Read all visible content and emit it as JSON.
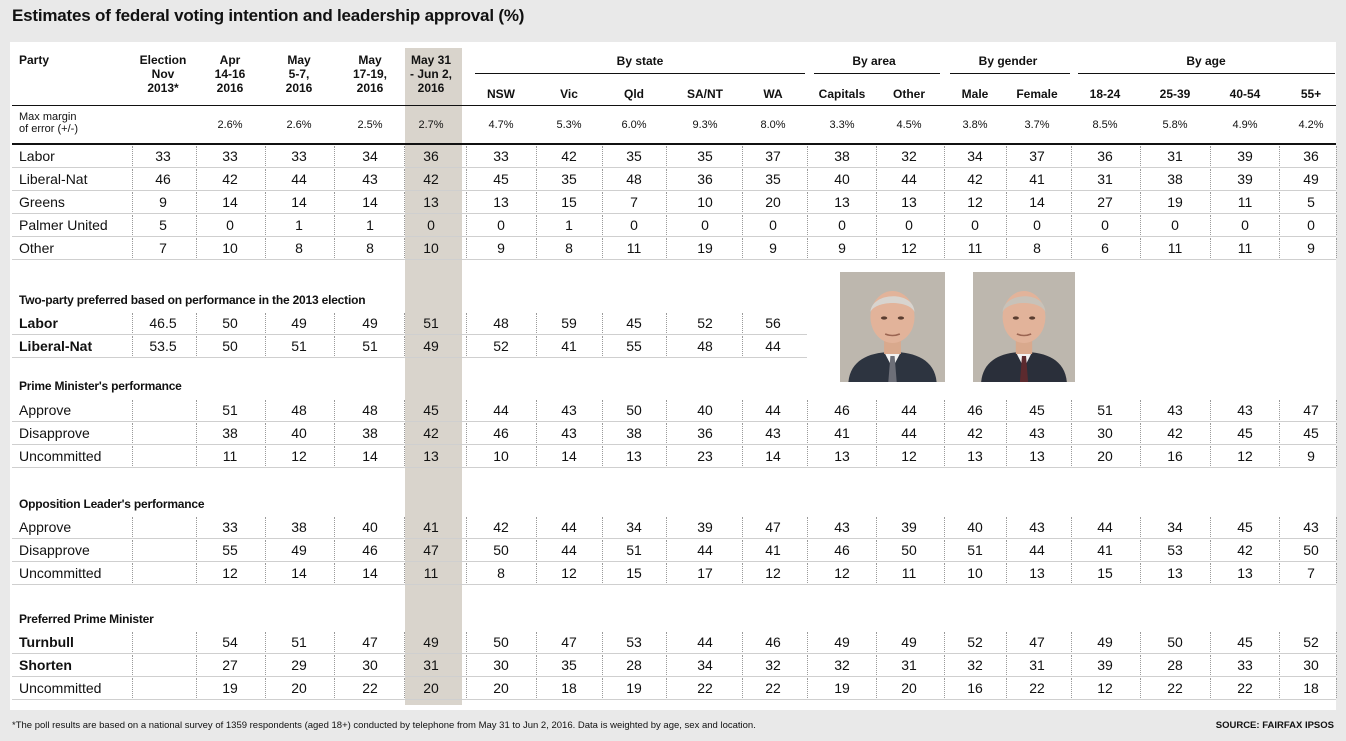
{
  "title": "Estimates of federal voting intention and leadership approval (%)",
  "columns": [
    "Election Nov 2013*",
    "Apr 14-16 2016",
    "May 5-7, 2016",
    "May 17-19, 2016",
    "May 31 - Jun 2, 2016",
    "NSW",
    "Vic",
    "Qld",
    "SA/NT",
    "WA",
    "Capitals",
    "Other",
    "Male",
    "Female",
    "18-24",
    "25-39",
    "40-54",
    "55+"
  ],
  "column_header_lines": [
    [
      "Election",
      "Nov",
      "2013*"
    ],
    [
      "Apr",
      "14-16",
      "2016"
    ],
    [
      "May",
      "5-7,",
      "2016"
    ],
    [
      "May",
      "17-19,",
      "2016"
    ],
    [
      "May 31",
      "- Jun 2,",
      "2016"
    ],
    [
      "NSW"
    ],
    [
      "Vic"
    ],
    [
      "Qld"
    ],
    [
      "SA/NT"
    ],
    [
      "WA"
    ],
    [
      "Capitals"
    ],
    [
      "Other"
    ],
    [
      "Male"
    ],
    [
      "Female"
    ],
    [
      "18-24"
    ],
    [
      "25-39"
    ],
    [
      "40-54"
    ],
    [
      "55+"
    ]
  ],
  "party_header": "Party",
  "groups": [
    "By state",
    "By area",
    "By gender",
    "By age"
  ],
  "margin_label_lines": [
    "Max margin",
    "of error (+/-)"
  ],
  "margins": [
    "",
    "2.6%",
    "2.6%",
    "2.5%",
    "2.7%",
    "4.7%",
    "5.3%",
    "6.0%",
    "9.3%",
    "8.0%",
    "3.3%",
    "4.5%",
    "3.8%",
    "3.7%",
    "8.5%",
    "5.8%",
    "4.9%",
    "4.2%"
  ],
  "primary": [
    {
      "label": "Labor",
      "bold": false,
      "values": [
        "33",
        "33",
        "33",
        "34",
        "36",
        "33",
        "42",
        "35",
        "35",
        "37",
        "38",
        "32",
        "34",
        "37",
        "36",
        "31",
        "39",
        "36"
      ]
    },
    {
      "label": "Liberal-Nat",
      "bold": false,
      "values": [
        "46",
        "42",
        "44",
        "43",
        "42",
        "45",
        "35",
        "48",
        "36",
        "35",
        "40",
        "44",
        "42",
        "41",
        "31",
        "38",
        "39",
        "49"
      ]
    },
    {
      "label": "Greens",
      "bold": false,
      "values": [
        "9",
        "14",
        "14",
        "14",
        "13",
        "13",
        "15",
        "7",
        "10",
        "20",
        "13",
        "13",
        "12",
        "14",
        "27",
        "19",
        "11",
        "5"
      ]
    },
    {
      "label": "Palmer United",
      "bold": false,
      "values": [
        "5",
        "0",
        "1",
        "1",
        "0",
        "0",
        "1",
        "0",
        "0",
        "0",
        "0",
        "0",
        "0",
        "0",
        "0",
        "0",
        "0",
        "0"
      ]
    },
    {
      "label": "Other",
      "bold": false,
      "values": [
        "7",
        "10",
        "8",
        "8",
        "10",
        "9",
        "8",
        "11",
        "19",
        "9",
        "9",
        "12",
        "11",
        "8",
        "6",
        "11",
        "11",
        "9"
      ]
    }
  ],
  "tpp": {
    "title": "Two-party preferred based on performance in the 2013 election",
    "rows": [
      {
        "label": "Labor",
        "bold": true,
        "values": [
          "46.5",
          "50",
          "49",
          "49",
          "51",
          "48",
          "59",
          "45",
          "52",
          "56"
        ]
      },
      {
        "label": "Liberal-Nat",
        "bold": true,
        "values": [
          "53.5",
          "50",
          "51",
          "51",
          "49",
          "52",
          "41",
          "55",
          "48",
          "44"
        ]
      }
    ]
  },
  "pm": {
    "title": "Prime Minister's performance",
    "rows": [
      {
        "label": "Approve",
        "bold": false,
        "values": [
          "",
          "51",
          "48",
          "48",
          "45",
          "44",
          "43",
          "50",
          "40",
          "44",
          "46",
          "44",
          "46",
          "45",
          "51",
          "43",
          "43",
          "47"
        ]
      },
      {
        "label": "Disapprove",
        "bold": false,
        "values": [
          "",
          "38",
          "40",
          "38",
          "42",
          "46",
          "43",
          "38",
          "36",
          "43",
          "41",
          "44",
          "42",
          "43",
          "30",
          "42",
          "45",
          "45"
        ]
      },
      {
        "label": "Uncommitted",
        "bold": false,
        "values": [
          "",
          "11",
          "12",
          "14",
          "13",
          "10",
          "14",
          "13",
          "23",
          "14",
          "13",
          "12",
          "13",
          "13",
          "20",
          "16",
          "12",
          "9"
        ]
      }
    ]
  },
  "opp": {
    "title": "Opposition Leader's performance",
    "rows": [
      {
        "label": "Approve",
        "bold": false,
        "values": [
          "",
          "33",
          "38",
          "40",
          "41",
          "42",
          "44",
          "34",
          "39",
          "47",
          "43",
          "39",
          "40",
          "43",
          "44",
          "34",
          "45",
          "43"
        ]
      },
      {
        "label": "Disapprove",
        "bold": false,
        "values": [
          "",
          "55",
          "49",
          "46",
          "47",
          "50",
          "44",
          "51",
          "44",
          "41",
          "46",
          "50",
          "51",
          "44",
          "41",
          "53",
          "42",
          "50"
        ]
      },
      {
        "label": "Uncommitted",
        "bold": false,
        "values": [
          "",
          "12",
          "14",
          "14",
          "11",
          "8",
          "12",
          "15",
          "17",
          "12",
          "12",
          "11",
          "10",
          "13",
          "15",
          "13",
          "13",
          "7"
        ]
      }
    ]
  },
  "ppm": {
    "title": "Preferred Prime Minister",
    "rows": [
      {
        "label": "Turnbull",
        "bold": true,
        "values": [
          "",
          "54",
          "51",
          "47",
          "49",
          "50",
          "47",
          "53",
          "44",
          "46",
          "49",
          "49",
          "52",
          "47",
          "49",
          "50",
          "45",
          "52"
        ]
      },
      {
        "label": "Shorten",
        "bold": true,
        "values": [
          "",
          "27",
          "29",
          "30",
          "31",
          "30",
          "35",
          "28",
          "34",
          "32",
          "32",
          "31",
          "32",
          "31",
          "39",
          "28",
          "33",
          "30"
        ]
      },
      {
        "label": "Uncommitted",
        "bold": false,
        "values": [
          "",
          "19",
          "20",
          "22",
          "20",
          "20",
          "18",
          "19",
          "22",
          "22",
          "19",
          "20",
          "16",
          "22",
          "12",
          "22",
          "22",
          "18"
        ]
      }
    ]
  },
  "footnote": "*The poll results are based on a national survey of 1359 respondents (aged 18+) conducted by telephone from May 31 to Jun 2, 2016.  Data is weighted by age, sex and location.",
  "source": "SOURCE: FAIRFAX IPSOS",
  "colors": {
    "highlight": "#d9d4cc",
    "panel": "#ffffff",
    "background": "#e9e9e9",
    "rule": "#111111",
    "dotted": "#9a9a9a",
    "row_divider": "#cfcfcf"
  }
}
